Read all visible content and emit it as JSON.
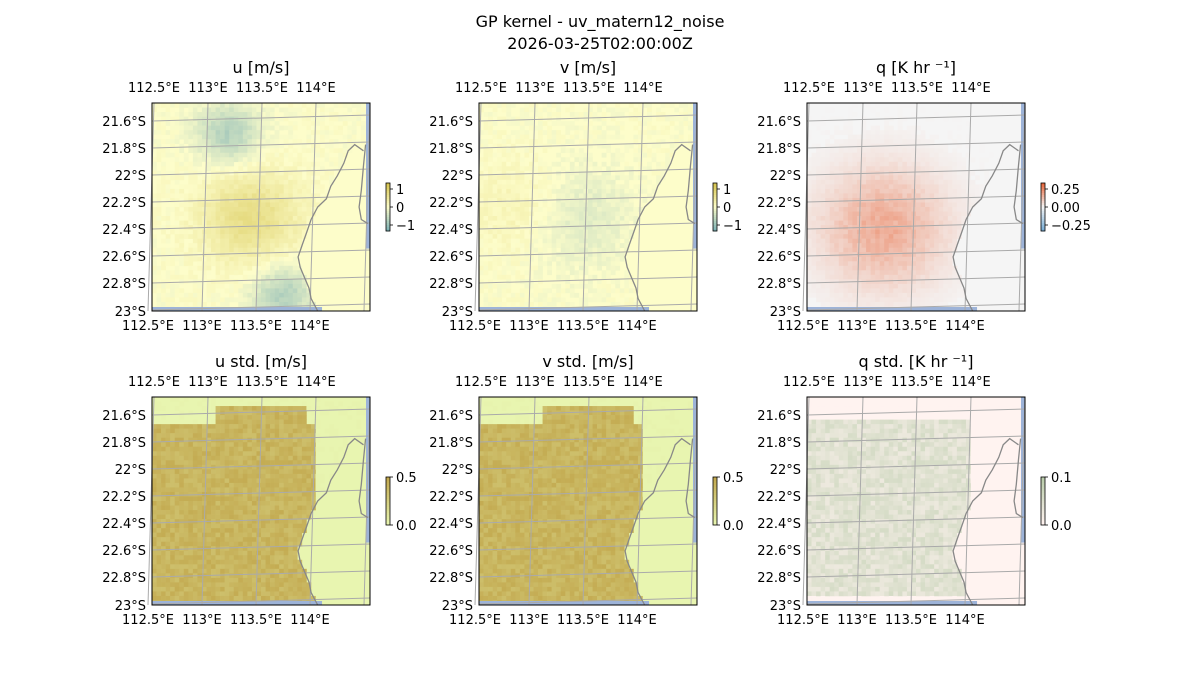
{
  "figure": {
    "title_line1": "GP kernel - uv_matern12_noise",
    "title_line2": "2026-03-25T02:00:00Z"
  },
  "colors": {
    "land_line": "#888888",
    "grid_line": "#aaaaaa",
    "ocean_edge": "#9db3d8"
  },
  "chart_data": [
    {
      "type": "heatmap",
      "title": "u [m/s]",
      "field": "u",
      "palette": "ygb",
      "base_color": "#fdfdca",
      "xticks": [
        "112.5°E",
        "113°E",
        "113.5°E",
        "114°E"
      ],
      "yticks": [
        "21.6°S",
        "21.8°S",
        "22°S",
        "22.2°S",
        "22.4°S",
        "22.6°S",
        "22.8°S",
        "23°S"
      ],
      "colorbar": {
        "ticks": [
          "1",
          "0",
          "−1"
        ],
        "range": [
          -1,
          1
        ]
      }
    },
    {
      "type": "heatmap",
      "title": "v [m/s]",
      "field": "v",
      "palette": "ygb",
      "base_color": "#fdfdca",
      "xticks": [
        "112.5°E",
        "113°E",
        "113.5°E",
        "114°E"
      ],
      "yticks": [
        "21.6°S",
        "21.8°S",
        "22°S",
        "22.2°S",
        "22.4°S",
        "22.6°S",
        "22.8°S",
        "23°S"
      ],
      "colorbar": {
        "ticks": [
          "1",
          "0",
          "−1"
        ],
        "range": [
          -1,
          1
        ]
      }
    },
    {
      "type": "heatmap",
      "title": "q [K hr ⁻¹]",
      "field": "q",
      "palette": "rdbu",
      "base_color": "#f5f5f5",
      "xticks": [
        "112.5°E",
        "113°E",
        "113.5°E",
        "114°E"
      ],
      "yticks": [
        "21.6°S",
        "21.8°S",
        "22°S",
        "22.2°S",
        "22.4°S",
        "22.6°S",
        "22.8°S",
        "23°S"
      ],
      "colorbar": {
        "ticks": [
          "0.25",
          "0.00",
          "−0.25"
        ],
        "range": [
          -0.35,
          0.35
        ]
      }
    },
    {
      "type": "heatmap",
      "title": "u std. [m/s]",
      "field": "ustd",
      "palette": "olive",
      "base_color": "#e8f5b0",
      "xticks": [
        "112.5°E",
        "113°E",
        "113.5°E",
        "114°E"
      ],
      "yticks": [
        "21.6°S",
        "21.8°S",
        "22°S",
        "22.2°S",
        "22.4°S",
        "22.6°S",
        "22.8°S",
        "23°S"
      ],
      "colorbar": {
        "ticks": [
          "0.5",
          "0.0"
        ],
        "range": [
          0,
          0.5
        ]
      }
    },
    {
      "type": "heatmap",
      "title": "v std. [m/s]",
      "field": "vstd",
      "palette": "olive",
      "base_color": "#e8f5b0",
      "xticks": [
        "112.5°E",
        "113°E",
        "113.5°E",
        "114°E"
      ],
      "yticks": [
        "21.6°S",
        "21.8°S",
        "22°S",
        "22.2°S",
        "22.4°S",
        "22.6°S",
        "22.8°S",
        "23°S"
      ],
      "colorbar": {
        "ticks": [
          "0.5",
          "0.0"
        ],
        "range": [
          0,
          0.5
        ]
      }
    },
    {
      "type": "heatmap",
      "title": "q std. [K hr ⁻¹]",
      "field": "qstd",
      "palette": "sage",
      "base_color": "#fff3f0",
      "xticks": [
        "112.5°E",
        "113°E",
        "113.5°E",
        "114°E"
      ],
      "yticks": [
        "21.6°S",
        "21.8°S",
        "22°S",
        "22.2°S",
        "22.4°S",
        "22.6°S",
        "22.8°S",
        "23°S"
      ],
      "colorbar": {
        "ticks": [
          "0.1",
          "0.0"
        ],
        "range": [
          0,
          0.12
        ]
      }
    }
  ]
}
